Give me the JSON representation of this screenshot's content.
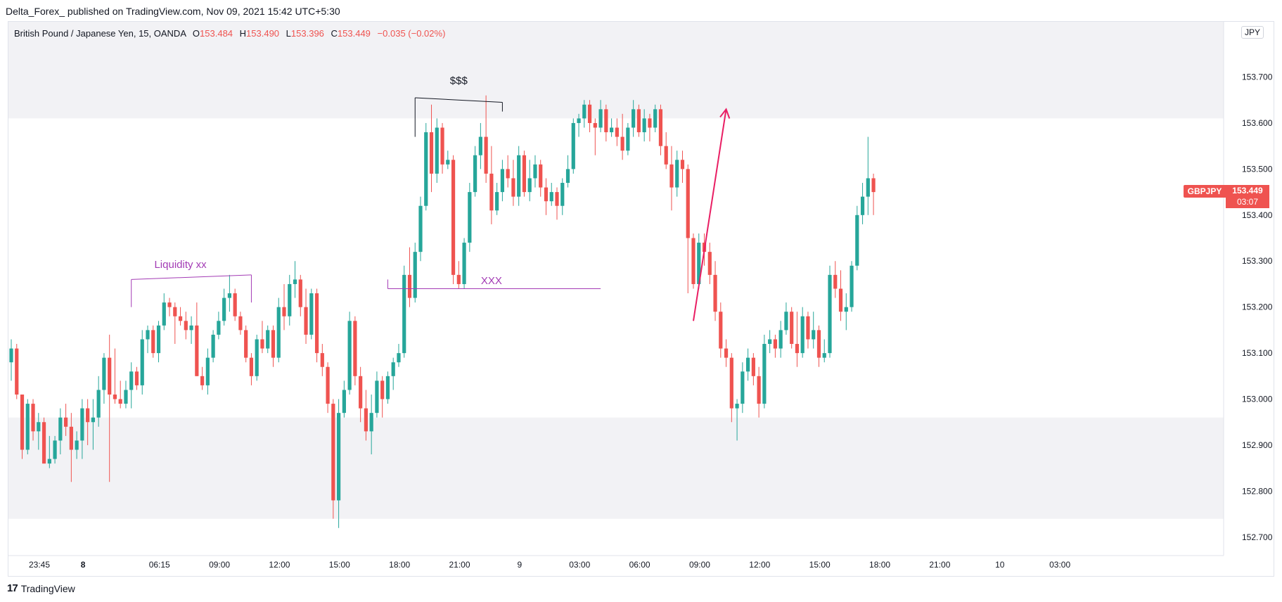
{
  "header": {
    "publisher": "Delta_Forex_ published on TradingView.com, Nov 09, 2021 15:42 UTC+5:30"
  },
  "legend": {
    "symbol": "British Pound / Japanese Yen, 15, OANDA",
    "open_label": "O",
    "open": "153.484",
    "high_label": "H",
    "high": "153.490",
    "low_label": "L",
    "low": "153.396",
    "close_label": "C",
    "close": "153.449",
    "change": "−0.035 (−0.02%)"
  },
  "price_axis": {
    "currency": "JPY"
  },
  "price_tag": {
    "symbol": "GBPJPY",
    "price": "153.449",
    "countdown": "03:07",
    "color": "#ef5350"
  },
  "footer": {
    "brand": "TradingView",
    "logo": "17"
  },
  "colors": {
    "up": "#26a69a",
    "down": "#ef5350",
    "zone": "#f2f2f5",
    "annotation_purple": "#a33bb5",
    "annotation_pink": "#e91e63",
    "annotation_black": "#131722"
  },
  "chart_data": {
    "type": "candlestick",
    "symbol": "GBPJPY",
    "timeframe": "15",
    "ylim": [
      152.66,
      153.82
    ],
    "y_ticks": [
      "153.700",
      "153.600",
      "153.500",
      "153.400",
      "153.300",
      "153.200",
      "153.100",
      "153.000",
      "152.900",
      "152.800",
      "152.700"
    ],
    "y_tick_values": [
      153.7,
      153.6,
      153.5,
      153.4,
      153.3,
      153.2,
      153.1,
      153.0,
      152.9,
      152.8,
      152.7
    ],
    "x_tick_labels": [
      "23:45",
      "8",
      "06:15",
      "09:00",
      "12:00",
      "15:00",
      "18:00",
      "21:00",
      "9",
      "03:00",
      "06:00",
      "09:00",
      "12:00",
      "15:00",
      "18:00",
      "21:00",
      "10",
      "03:00"
    ],
    "x_tick_bold": [
      false,
      true,
      false,
      false,
      false,
      false,
      false,
      false,
      false,
      false,
      false,
      false,
      false,
      false,
      false,
      false,
      false,
      false
    ],
    "x_tick_bar_index": [
      0,
      8,
      22,
      33,
      44,
      55,
      66,
      77,
      88,
      99,
      110,
      121,
      132,
      143,
      154,
      165,
      176,
      187
    ],
    "zones": [
      {
        "from": 153.61,
        "to": 153.82
      },
      {
        "from": 152.74,
        "to": 152.96
      }
    ],
    "candles": [
      [
        153.08,
        153.13,
        153.04,
        153.11
      ],
      [
        153.11,
        153.12,
        153.0,
        153.01
      ],
      [
        153.01,
        153.01,
        152.87,
        152.89
      ],
      [
        152.89,
        153.0,
        152.88,
        152.99
      ],
      [
        152.99,
        153.0,
        152.91,
        152.93
      ],
      [
        152.93,
        152.97,
        152.89,
        152.95
      ],
      [
        152.95,
        152.96,
        152.86,
        152.86
      ],
      [
        152.86,
        152.92,
        152.85,
        152.87
      ],
      [
        152.87,
        152.92,
        152.86,
        152.91
      ],
      [
        152.91,
        152.98,
        152.88,
        152.96
      ],
      [
        152.96,
        152.99,
        152.92,
        152.94
      ],
      [
        152.94,
        152.97,
        152.82,
        152.89
      ],
      [
        152.89,
        152.93,
        152.87,
        152.91
      ],
      [
        152.91,
        153.0,
        152.87,
        152.98
      ],
      [
        152.98,
        153.0,
        152.9,
        152.95
      ],
      [
        152.95,
        153.0,
        152.89,
        152.96
      ],
      [
        152.96,
        153.05,
        152.94,
        153.02
      ],
      [
        153.02,
        153.1,
        152.99,
        153.09
      ],
      [
        153.09,
        153.14,
        152.82,
        153.01
      ],
      [
        153.01,
        153.11,
        152.99,
        153.0
      ],
      [
        153.0,
        153.04,
        152.98,
        152.99
      ],
      [
        152.99,
        153.04,
        152.98,
        153.02
      ],
      [
        153.02,
        153.08,
        152.98,
        153.06
      ],
      [
        153.06,
        153.07,
        153.02,
        153.03
      ],
      [
        153.03,
        153.15,
        153.01,
        153.13
      ],
      [
        153.13,
        153.16,
        153.1,
        153.15
      ],
      [
        153.15,
        153.16,
        153.09,
        153.1
      ],
      [
        153.1,
        153.17,
        153.08,
        153.16
      ],
      [
        153.16,
        153.23,
        153.15,
        153.21
      ],
      [
        153.21,
        153.22,
        153.18,
        153.2
      ],
      [
        153.2,
        153.21,
        153.12,
        153.18
      ],
      [
        153.18,
        153.2,
        153.16,
        153.17
      ],
      [
        153.17,
        153.19,
        153.13,
        153.15
      ],
      [
        153.15,
        153.18,
        153.12,
        153.16
      ],
      [
        153.16,
        153.21,
        153.05,
        153.05
      ],
      [
        153.05,
        153.07,
        153.02,
        153.03
      ],
      [
        153.03,
        153.11,
        153.01,
        153.09
      ],
      [
        153.09,
        153.15,
        153.08,
        153.14
      ],
      [
        153.14,
        153.19,
        153.13,
        153.17
      ],
      [
        153.17,
        153.24,
        153.16,
        153.22
      ],
      [
        153.22,
        153.27,
        153.19,
        153.23
      ],
      [
        153.23,
        153.24,
        153.17,
        153.18
      ],
      [
        153.18,
        153.19,
        153.14,
        153.15
      ],
      [
        153.15,
        153.16,
        153.08,
        153.09
      ],
      [
        153.09,
        153.1,
        153.03,
        153.05
      ],
      [
        153.05,
        153.14,
        153.04,
        153.13
      ],
      [
        153.13,
        153.17,
        153.1,
        153.11
      ],
      [
        153.11,
        153.16,
        153.1,
        153.15
      ],
      [
        153.15,
        153.16,
        153.07,
        153.09
      ],
      [
        153.09,
        153.22,
        153.08,
        153.2
      ],
      [
        153.2,
        153.25,
        153.15,
        153.18
      ],
      [
        153.18,
        153.27,
        153.16,
        153.25
      ],
      [
        153.25,
        153.3,
        153.22,
        153.26
      ],
      [
        153.26,
        153.27,
        153.18,
        153.2
      ],
      [
        153.2,
        153.24,
        153.12,
        153.14
      ],
      [
        153.14,
        153.24,
        153.13,
        153.23
      ],
      [
        153.23,
        153.24,
        153.08,
        153.1
      ],
      [
        153.1,
        153.12,
        153.05,
        153.07
      ],
      [
        153.07,
        153.08,
        152.97,
        152.99
      ],
      [
        152.99,
        153.0,
        152.74,
        152.78
      ],
      [
        152.78,
        153.0,
        152.72,
        152.97
      ],
      [
        152.97,
        153.04,
        152.96,
        153.02
      ],
      [
        153.02,
        153.19,
        153.01,
        153.17
      ],
      [
        153.17,
        153.18,
        153.03,
        153.05
      ],
      [
        153.05,
        153.07,
        152.95,
        152.98
      ],
      [
        152.98,
        153.02,
        152.91,
        152.93
      ],
      [
        152.93,
        153.01,
        152.88,
        152.97
      ],
      [
        152.97,
        153.06,
        152.96,
        153.04
      ],
      [
        153.04,
        153.05,
        152.96,
        153.0
      ],
      [
        153.0,
        153.06,
        152.99,
        153.05
      ],
      [
        153.05,
        153.09,
        153.02,
        153.08
      ],
      [
        153.08,
        153.12,
        153.07,
        153.1
      ],
      [
        153.1,
        153.29,
        153.09,
        153.27
      ],
      [
        153.27,
        153.33,
        153.2,
        153.22
      ],
      [
        153.22,
        153.34,
        153.21,
        153.32
      ],
      [
        153.32,
        153.44,
        153.3,
        153.42
      ],
      [
        153.42,
        153.6,
        153.41,
        153.58
      ],
      [
        153.58,
        153.64,
        153.45,
        153.49
      ],
      [
        153.49,
        153.61,
        153.47,
        153.59
      ],
      [
        153.59,
        153.6,
        153.49,
        153.51
      ],
      [
        153.51,
        153.54,
        153.5,
        153.52
      ],
      [
        153.52,
        153.53,
        153.25,
        153.27
      ],
      [
        153.27,
        153.3,
        153.24,
        153.25
      ],
      [
        153.25,
        153.35,
        153.24,
        153.34
      ],
      [
        153.34,
        153.47,
        153.32,
        153.45
      ],
      [
        153.45,
        153.55,
        153.44,
        153.53
      ],
      [
        153.53,
        153.6,
        153.5,
        153.57
      ],
      [
        153.57,
        153.66,
        153.47,
        153.49
      ],
      [
        153.49,
        153.55,
        153.38,
        153.41
      ],
      [
        153.41,
        153.47,
        153.4,
        153.45
      ],
      [
        153.45,
        153.52,
        153.43,
        153.5
      ],
      [
        153.5,
        153.53,
        153.46,
        153.48
      ],
      [
        153.48,
        153.52,
        153.42,
        153.44
      ],
      [
        153.44,
        153.55,
        153.42,
        153.53
      ],
      [
        153.53,
        153.54,
        153.44,
        153.45
      ],
      [
        153.45,
        153.52,
        153.43,
        153.48
      ],
      [
        153.48,
        153.53,
        153.46,
        153.51
      ],
      [
        153.51,
        153.52,
        153.44,
        153.46
      ],
      [
        153.46,
        153.48,
        153.4,
        153.43
      ],
      [
        153.43,
        153.47,
        153.42,
        153.45
      ],
      [
        153.45,
        153.46,
        153.39,
        153.42
      ],
      [
        153.42,
        153.48,
        153.4,
        153.47
      ],
      [
        153.47,
        153.53,
        153.46,
        153.5
      ],
      [
        153.5,
        153.61,
        153.49,
        153.6
      ],
      [
        153.6,
        153.62,
        153.57,
        153.61
      ],
      [
        153.61,
        153.65,
        153.59,
        153.64
      ],
      [
        153.64,
        153.65,
        153.58,
        153.6
      ],
      [
        153.6,
        153.61,
        153.53,
        153.59
      ],
      [
        153.59,
        153.65,
        153.58,
        153.63
      ],
      [
        153.63,
        153.64,
        153.56,
        153.58
      ],
      [
        153.58,
        153.61,
        153.57,
        153.59
      ],
      [
        153.59,
        153.61,
        153.55,
        153.57
      ],
      [
        153.57,
        153.62,
        153.52,
        153.54
      ],
      [
        153.54,
        153.6,
        153.53,
        153.59
      ],
      [
        153.59,
        153.65,
        153.57,
        153.63
      ],
      [
        153.63,
        153.64,
        153.57,
        153.58
      ],
      [
        153.58,
        153.63,
        153.56,
        153.61
      ],
      [
        153.61,
        153.62,
        153.56,
        153.59
      ],
      [
        153.59,
        153.64,
        153.58,
        153.63
      ],
      [
        153.63,
        153.64,
        153.53,
        153.55
      ],
      [
        153.55,
        153.58,
        153.5,
        153.51
      ],
      [
        153.51,
        153.55,
        153.41,
        153.46
      ],
      [
        153.46,
        153.54,
        153.44,
        153.52
      ],
      [
        153.52,
        153.54,
        153.47,
        153.5
      ],
      [
        153.5,
        153.51,
        153.23,
        153.35
      ],
      [
        153.35,
        153.36,
        153.24,
        153.25
      ],
      [
        153.25,
        153.36,
        153.24,
        153.34
      ],
      [
        153.34,
        153.36,
        153.29,
        153.32
      ],
      [
        153.32,
        153.34,
        153.25,
        153.27
      ],
      [
        153.27,
        153.3,
        153.17,
        153.19
      ],
      [
        153.19,
        153.21,
        153.09,
        153.11
      ],
      [
        153.11,
        153.13,
        153.07,
        153.09
      ],
      [
        153.09,
        153.1,
        152.95,
        152.98
      ],
      [
        152.98,
        153.0,
        152.91,
        152.99
      ],
      [
        152.99,
        153.08,
        152.97,
        153.06
      ],
      [
        153.06,
        153.11,
        153.04,
        153.09
      ],
      [
        153.09,
        153.1,
        153.03,
        153.05
      ],
      [
        153.05,
        153.07,
        152.96,
        152.99
      ],
      [
        152.99,
        153.14,
        152.98,
        153.12
      ],
      [
        153.12,
        153.15,
        153.1,
        153.13
      ],
      [
        153.13,
        153.14,
        153.09,
        153.11
      ],
      [
        153.11,
        153.17,
        153.09,
        153.15
      ],
      [
        153.15,
        153.21,
        153.14,
        153.19
      ],
      [
        153.19,
        153.2,
        153.11,
        153.12
      ],
      [
        153.12,
        153.19,
        153.07,
        153.1
      ],
      [
        153.1,
        153.2,
        153.09,
        153.18
      ],
      [
        153.18,
        153.19,
        153.11,
        153.13
      ],
      [
        153.13,
        153.19,
        153.11,
        153.15
      ],
      [
        153.15,
        153.16,
        153.07,
        153.09
      ],
      [
        153.09,
        153.13,
        153.08,
        153.1
      ],
      [
        153.1,
        153.29,
        153.09,
        153.27
      ],
      [
        153.27,
        153.3,
        153.22,
        153.24
      ],
      [
        153.24,
        153.28,
        153.17,
        153.19
      ],
      [
        153.19,
        153.23,
        153.15,
        153.2
      ],
      [
        153.2,
        153.3,
        153.19,
        153.29
      ],
      [
        153.29,
        153.42,
        153.28,
        153.4
      ],
      [
        153.4,
        153.47,
        153.38,
        153.44
      ],
      [
        153.44,
        153.57,
        153.4,
        153.48
      ],
      [
        153.48,
        153.49,
        153.4,
        153.45
      ]
    ],
    "annotations": [
      {
        "kind": "line",
        "label": "Liquidity  xx",
        "color": "#a33bb5",
        "points": [
          [
            22,
            153.26
          ],
          [
            44,
            153.27
          ]
        ],
        "left_tick": 153.2,
        "right_tick": 153.21,
        "label_at": [
          31,
          153.285
        ]
      },
      {
        "kind": "line",
        "label": "XXX",
        "color": "#a33bb5",
        "points": [
          [
            69,
            153.24
          ],
          [
            108,
            153.24
          ]
        ],
        "left_tick": 153.26,
        "label_at": [
          88,
          153.25
        ]
      },
      {
        "kind": "line",
        "label": "$$$",
        "color": "#131722",
        "points": [
          [
            74,
            153.655
          ],
          [
            90,
            153.645
          ]
        ],
        "left_tick": 153.57,
        "right_tick": 153.625,
        "label_at": [
          82,
          153.685
        ]
      },
      {
        "kind": "arrow",
        "label": "",
        "color": "#e91e63",
        "points": [
          [
            125,
            153.17
          ],
          [
            131,
            153.63
          ]
        ]
      }
    ]
  }
}
